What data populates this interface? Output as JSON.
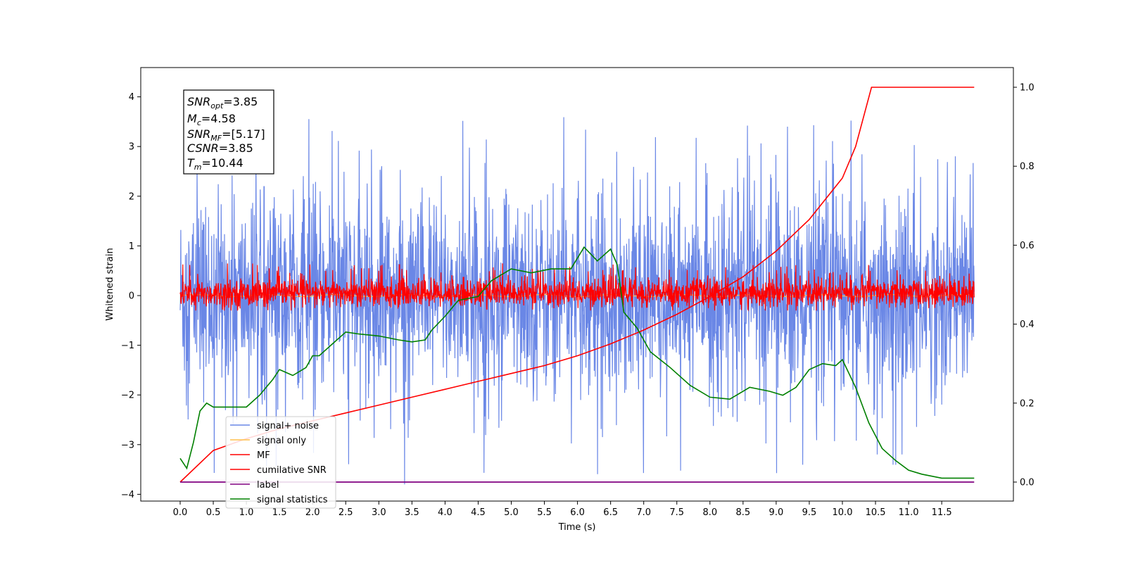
{
  "chart_data": {
    "type": "line",
    "xlabel": "Time (s)",
    "ylabel": "Whitened strain",
    "xlim": [
      -0.6,
      12.6
    ],
    "ylim": [
      -4.2,
      4.55
    ],
    "y2lim": [
      -0.05,
      1.05
    ],
    "x_ticks": [
      "0.0",
      "0.5",
      "1.0",
      "1.5",
      "2.0",
      "2.5",
      "3.0",
      "3.5",
      "4.0",
      "4.5",
      "5.0",
      "5.5",
      "6.0",
      "6.5",
      "7.0",
      "7.5",
      "8.0",
      "8.5",
      "9.0",
      "9.5",
      "10.0",
      "10.5",
      "11.0",
      "11.5"
    ],
    "y_ticks": [
      "4",
      "3",
      "2",
      "1",
      "0",
      "−1",
      "−2",
      "−3",
      "−4"
    ],
    "y2_ticks": [
      "1.0",
      "0.8",
      "0.6",
      "0.4",
      "0.2",
      "0.0"
    ],
    "legend_position": "lower-left",
    "grid": false,
    "colors": {
      "signal_noise": "#6a87e6",
      "signal_only": "#ffc04d",
      "mf": "#ff0000",
      "cumulative_snr": "#ff0000",
      "label": "#800080",
      "signal_statistics": "#008000"
    },
    "series": [
      {
        "name": "signal+ noise",
        "axis": "left",
        "description_values": {
          "x_range": [
            0,
            11.99
          ],
          "y_band": [
            -1.5,
            1.5
          ],
          "y_peak_max": 4.15,
          "y_peak_min": -3.8
        }
      },
      {
        "name": "signal only",
        "axis": "left",
        "description_values": {
          "x_range": [
            0,
            11.99
          ],
          "y_approx": 0.0
        }
      },
      {
        "name": "MF",
        "axis": "left",
        "description_values": {
          "x_range": [
            0,
            11.99
          ],
          "y_band": [
            -0.3,
            0.3
          ],
          "y_peak_max": 1.0,
          "y_peak_min": -0.3
        }
      },
      {
        "name": "cumilative SNR",
        "axis": "right",
        "x": [
          0.0,
          0.5,
          1.0,
          1.5,
          2.0,
          2.5,
          3.0,
          3.5,
          4.0,
          4.5,
          5.0,
          5.5,
          6.0,
          6.5,
          7.0,
          7.5,
          8.0,
          8.5,
          9.0,
          9.5,
          10.0,
          10.2,
          10.44,
          11.99
        ],
        "values": [
          0.0,
          0.08,
          0.11,
          0.135,
          0.155,
          0.175,
          0.195,
          0.215,
          0.235,
          0.255,
          0.275,
          0.295,
          0.32,
          0.35,
          0.385,
          0.425,
          0.47,
          0.52,
          0.585,
          0.665,
          0.77,
          0.85,
          1.0,
          1.0
        ]
      },
      {
        "name": "label",
        "axis": "right",
        "x": [
          0.0,
          11.99
        ],
        "values": [
          0.0,
          0.0
        ]
      },
      {
        "name": "signal statistics",
        "axis": "right",
        "x": [
          0.0,
          0.1,
          0.2,
          0.3,
          0.4,
          0.5,
          0.7,
          1.0,
          1.2,
          1.4,
          1.5,
          1.7,
          1.9,
          2.0,
          2.1,
          2.3,
          2.5,
          2.7,
          3.0,
          3.3,
          3.5,
          3.7,
          3.8,
          4.0,
          4.2,
          4.5,
          4.7,
          5.0,
          5.3,
          5.6,
          5.9,
          6.1,
          6.3,
          6.5,
          6.6,
          6.7,
          6.9,
          7.1,
          7.4,
          7.7,
          8.0,
          8.3,
          8.6,
          8.9,
          9.1,
          9.3,
          9.5,
          9.7,
          9.9,
          10.0,
          10.2,
          10.4,
          10.6,
          10.8,
          11.0,
          11.2,
          11.5,
          11.99
        ],
        "values": [
          0.06,
          0.035,
          0.1,
          0.18,
          0.2,
          0.19,
          0.19,
          0.19,
          0.22,
          0.26,
          0.285,
          0.27,
          0.29,
          0.32,
          0.32,
          0.35,
          0.38,
          0.375,
          0.37,
          0.36,
          0.355,
          0.36,
          0.385,
          0.42,
          0.46,
          0.47,
          0.51,
          0.54,
          0.53,
          0.54,
          0.54,
          0.595,
          0.56,
          0.59,
          0.55,
          0.43,
          0.39,
          0.33,
          0.29,
          0.245,
          0.215,
          0.21,
          0.24,
          0.23,
          0.22,
          0.24,
          0.285,
          0.3,
          0.295,
          0.31,
          0.24,
          0.15,
          0.085,
          0.055,
          0.03,
          0.02,
          0.01,
          0.01
        ]
      }
    ]
  },
  "stats_box": {
    "snr_opt": {
      "sym": "SNR",
      "sub": "opt",
      "val": "=3.85"
    },
    "mc": {
      "sym": "M",
      "sub": "c",
      "val": "=4.58"
    },
    "snr_mf": {
      "sym": "SNR",
      "sub": "MF",
      "val": "=[5.17]"
    },
    "csnr": {
      "sym": "CSNR",
      "sub": "",
      "val": "=3.85"
    },
    "tm": {
      "sym": "T",
      "sub": "m",
      "val": "=10.44"
    }
  },
  "legend": {
    "items": [
      {
        "label": "signal+ noise"
      },
      {
        "label": "signal only"
      },
      {
        "label": "MF"
      },
      {
        "label": "cumilative SNR"
      },
      {
        "label": "label"
      },
      {
        "label": "signal statistics"
      }
    ]
  }
}
